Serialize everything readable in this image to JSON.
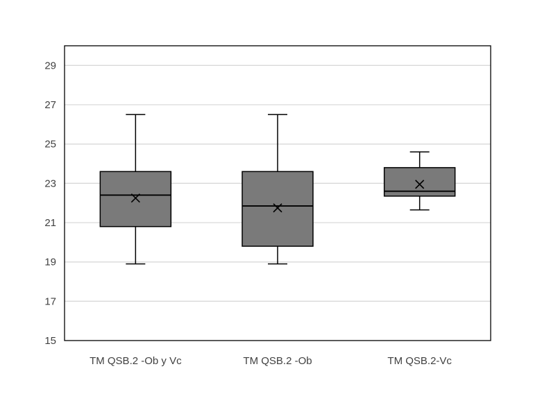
{
  "chart_data": {
    "type": "box",
    "title": "",
    "xlabel": "",
    "ylabel": "",
    "ylim": [
      15,
      30
    ],
    "yticks": [
      15,
      17,
      19,
      21,
      23,
      25,
      27,
      29
    ],
    "grid": true,
    "legend": "none",
    "colors": {
      "box_fill": "#7a7a7a",
      "stroke": "#000000",
      "grid": "#d9d9d9"
    },
    "categories": [
      "TM QSB.2 -Ob y Vc",
      "TM QSB.2 -Ob",
      "TM QSB.2-Vc"
    ],
    "boxes": [
      {
        "category": "TM QSB.2 -Ob y Vc",
        "min": 18.9,
        "q1": 20.8,
        "median": 22.4,
        "q3": 23.6,
        "max": 26.5,
        "mean": 22.25
      },
      {
        "category": "TM QSB.2 -Ob",
        "min": 18.9,
        "q1": 19.8,
        "median": 21.85,
        "q3": 23.6,
        "max": 26.5,
        "mean": 21.75
      },
      {
        "category": "TM QSB.2-Vc",
        "min": 21.65,
        "q1": 22.35,
        "median": 22.6,
        "q3": 23.8,
        "max": 24.6,
        "mean": 22.95
      }
    ]
  }
}
